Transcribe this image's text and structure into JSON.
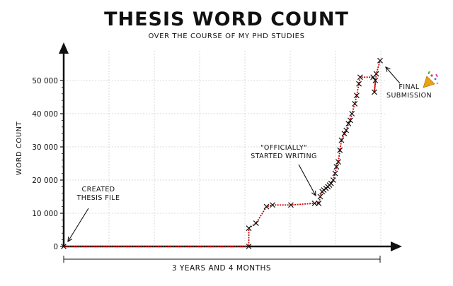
{
  "chart_data": {
    "type": "line",
    "title": "THESIS WORD COUNT",
    "subtitle": "OVER THE COURSE OF MY PHD STUDIES",
    "xlabel": "3 YEARS AND 4 MONTHS",
    "ylabel": "WORD COUNT",
    "ylim": [
      0,
      58000
    ],
    "y_ticks": [
      0,
      10000,
      20000,
      30000,
      40000,
      50000
    ],
    "y_tick_labels": [
      "0",
      "10 000",
      "20 000",
      "30 000",
      "40 000",
      "50 000"
    ],
    "xlim": [
      0,
      1
    ],
    "grid": true,
    "x_unit": "fraction of PhD duration",
    "line_color": "#cc0000",
    "marker": "x",
    "points": [
      [
        0.0,
        0
      ],
      [
        0.585,
        0
      ],
      [
        0.585,
        5500
      ],
      [
        0.608,
        7000
      ],
      [
        0.641,
        12000
      ],
      [
        0.66,
        12500
      ],
      [
        0.718,
        12500
      ],
      [
        0.793,
        13000
      ],
      [
        0.806,
        13000
      ],
      [
        0.811,
        15000
      ],
      [
        0.817,
        16500
      ],
      [
        0.822,
        17000
      ],
      [
        0.829,
        17500
      ],
      [
        0.835,
        18000
      ],
      [
        0.84,
        18500
      ],
      [
        0.845,
        19000
      ],
      [
        0.852,
        20000
      ],
      [
        0.858,
        22000
      ],
      [
        0.862,
        24000
      ],
      [
        0.868,
        25500
      ],
      [
        0.873,
        29000
      ],
      [
        0.878,
        32000
      ],
      [
        0.887,
        34000
      ],
      [
        0.893,
        35000
      ],
      [
        0.9,
        37000
      ],
      [
        0.906,
        38000
      ],
      [
        0.911,
        40000
      ],
      [
        0.92,
        43000
      ],
      [
        0.926,
        45500
      ],
      [
        0.933,
        49000
      ],
      [
        0.937,
        51000
      ],
      [
        0.978,
        51000
      ],
      [
        0.985,
        50000
      ],
      [
        0.982,
        46500
      ],
      [
        0.988,
        52000
      ],
      [
        1.0,
        56000
      ]
    ],
    "annotations": [
      {
        "id": "created",
        "lines": [
          "CREATED",
          "THESIS FILE"
        ]
      },
      {
        "id": "started",
        "lines": [
          "\"OFFICIALLY\"",
          "STARTED WRITING"
        ]
      },
      {
        "id": "final",
        "lines": [
          "FINAL",
          "SUBMISSION"
        ]
      }
    ],
    "party_icon": "party-popper-icon"
  }
}
